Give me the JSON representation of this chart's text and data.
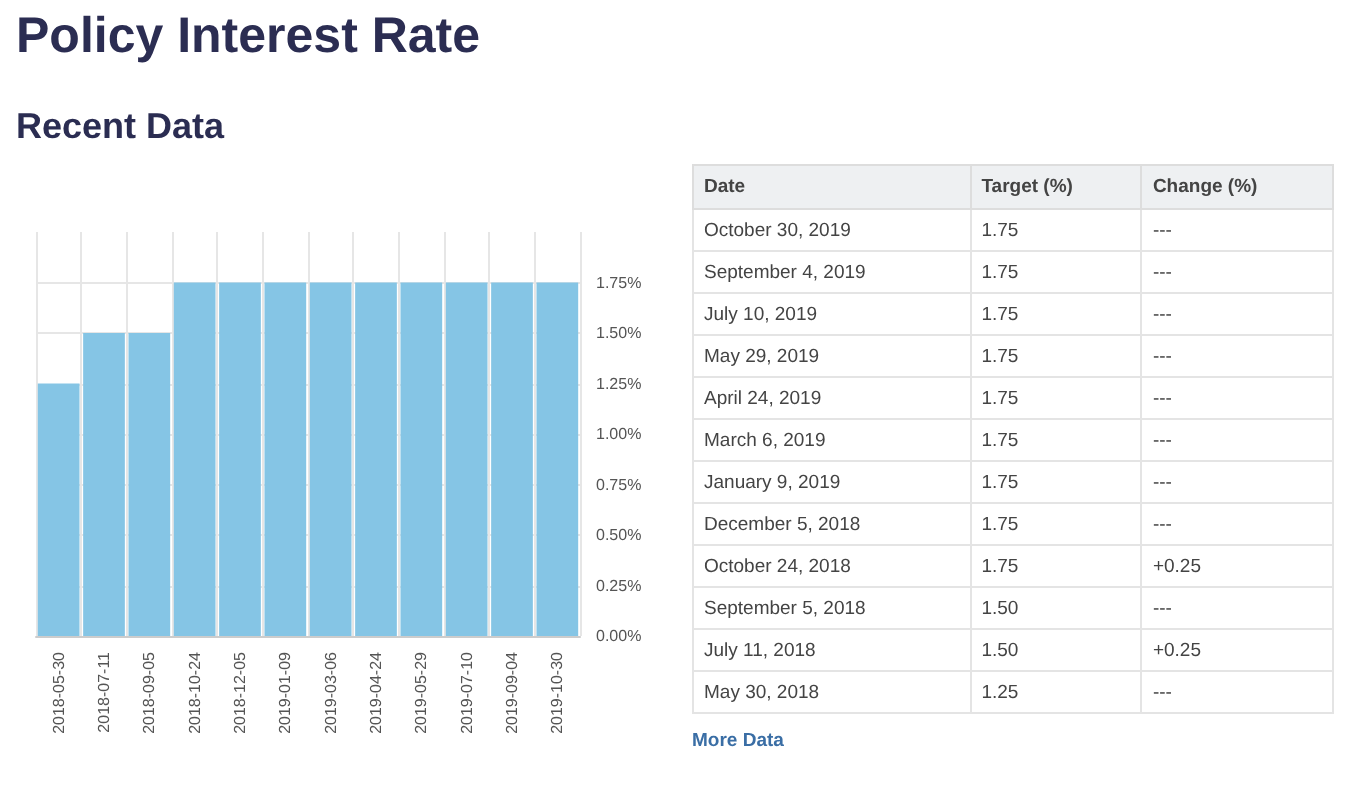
{
  "chart_data": [
    {
      "type": "bar",
      "title": "Policy Interest Rate",
      "subtitle": "Recent Data",
      "categories": [
        "2018-05-30",
        "2018-07-11",
        "2018-09-05",
        "2018-10-24",
        "2018-12-05",
        "2019-01-09",
        "2019-03-06",
        "2019-04-24",
        "2019-05-29",
        "2019-07-10",
        "2019-09-04",
        "2019-10-30"
      ],
      "values": [
        1.25,
        1.5,
        1.5,
        1.75,
        1.75,
        1.75,
        1.75,
        1.75,
        1.75,
        1.75,
        1.75,
        1.75
      ],
      "color": "#85c5e5",
      "ylim": [
        0,
        2
      ],
      "yticks": [
        {
          "value": 0,
          "label": "0.00%"
        },
        {
          "value": 0.25,
          "label": "0.25%"
        },
        {
          "value": 0.5,
          "label": "0.50%"
        },
        {
          "value": 0.75,
          "label": "0.75%"
        },
        {
          "value": 1,
          "label": "1.00%"
        },
        {
          "value": 1.25,
          "label": "1.25%"
        },
        {
          "value": 1.5,
          "label": "1.50%"
        },
        {
          "value": 1.75,
          "label": "1.75%"
        }
      ],
      "grid": true
    },
    {
      "type": "other",
      "xlabel": "Date",
      "categories": [
        "October 30, 2019",
        "September 4, 2019",
        "July 10, 2019",
        "May 29, 2019",
        "April 24, 2019",
        "March 6, 2019",
        "January 9, 2019",
        "December 5, 2018",
        "October 24, 2018",
        "September 5, 2018",
        "July 11, 2018",
        "May 30, 2018"
      ],
      "series": [
        {
          "name": "Target (%)",
          "values": [
            1.75,
            1.75,
            1.75,
            1.75,
            1.75,
            1.75,
            1.75,
            1.75,
            1.75,
            1.5,
            1.5,
            1.25
          ],
          "value_labels": [
            "1.75",
            "1.75",
            "1.75",
            "1.75",
            "1.75",
            "1.75",
            "1.75",
            "1.75",
            "1.75",
            "1.50",
            "1.50",
            "1.25"
          ]
        },
        {
          "name": "Change (%)",
          "values": [
            null,
            null,
            null,
            null,
            null,
            null,
            null,
            null,
            0.25,
            null,
            0.25,
            null
          ],
          "value_labels": [
            "---",
            "---",
            "---",
            "---",
            "---",
            "---",
            "---",
            "---",
            "+0.25",
            "---",
            "+0.25",
            "---"
          ]
        }
      ],
      "annotations": [
        "More Data"
      ]
    }
  ]
}
